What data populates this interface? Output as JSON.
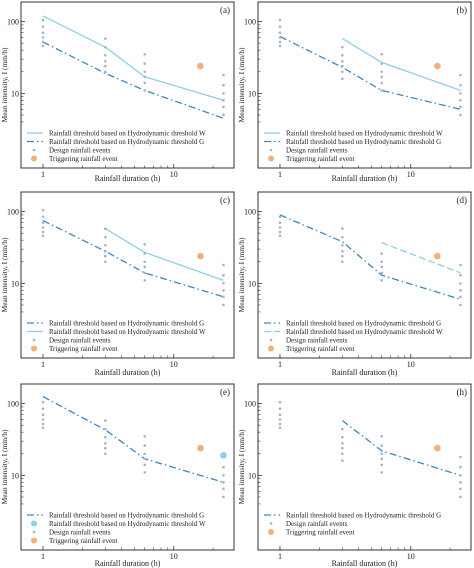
{
  "chart_data": [
    {
      "type": "line",
      "panel_label": "(a)",
      "xlabel": "Rainfall duration (h)",
      "ylabel": "Mean intensity, I (mm/h)",
      "xscale": "log",
      "yscale": "log",
      "xlim": [
        0.9,
        26
      ],
      "ylim": [
        3.4,
        145
      ],
      "x_tick_labels": [
        "1",
        "10"
      ],
      "y_tick_labels": [
        "10",
        "100"
      ],
      "grid": false,
      "legend_position": "bottom-left",
      "series": [
        {
          "name": "Rainfall threshold based on Hydrodynamic threshold W",
          "style": "solid",
          "color": "#8ecfe8",
          "x": [
            1,
            3,
            6,
            24
          ],
          "y": [
            120,
            44,
            17,
            8
          ]
        },
        {
          "name": "Rainfall threshold based on Hydrodynamic threshold G",
          "style": "dashdot",
          "color": "#3a86c4",
          "x": [
            1,
            3,
            6,
            24
          ],
          "y": [
            52,
            19,
            11,
            4.5
          ]
        },
        {
          "name": "Design rainfall events",
          "style": "dots",
          "color": "#aab3bb",
          "points": [
            [
              1,
              105
            ],
            [
              1,
              85
            ],
            [
              1,
              70
            ],
            [
              1,
              60
            ],
            [
              1,
              52
            ],
            [
              1,
              46
            ],
            [
              3,
              58
            ],
            [
              3,
              44
            ],
            [
              3,
              34
            ],
            [
              3,
              28
            ],
            [
              3,
              24
            ],
            [
              3,
              20
            ],
            [
              6,
              35
            ],
            [
              6,
              26
            ],
            [
              6,
              20
            ],
            [
              6,
              17
            ],
            [
              6,
              14
            ],
            [
              6,
              11
            ],
            [
              24,
              18
            ],
            [
              24,
              13
            ],
            [
              24,
              10
            ],
            [
              24,
              8
            ],
            [
              24,
              6.5
            ],
            [
              24,
              5
            ]
          ]
        },
        {
          "name": "Triggering rainfall event",
          "style": "marker",
          "color": "#f3b07a",
          "points": [
            [
              16,
              24
            ]
          ]
        }
      ]
    },
    {
      "type": "line",
      "panel_label": "(b)",
      "xlabel": "Rainfall duration (h)",
      "ylabel": "Mean intensity, I (mm/h)",
      "xscale": "log",
      "yscale": "log",
      "xlim": [
        0.9,
        26
      ],
      "ylim": [
        3.4,
        145
      ],
      "x_tick_labels": [
        "1",
        "10"
      ],
      "y_tick_labels": [
        "10",
        "100"
      ],
      "grid": false,
      "legend_position": "bottom-left",
      "series": [
        {
          "name": "Rainfall threshold based on Hydrodynamic threshold W",
          "style": "solid",
          "color": "#8ecfe8",
          "x": [
            3,
            6,
            24
          ],
          "y": [
            58,
            27,
            11
          ]
        },
        {
          "name": "Rainfall threshold based on Hydrodynamic threshold G",
          "style": "dashdot",
          "color": "#3a86c4",
          "x": [
            1,
            3,
            6,
            24
          ],
          "y": [
            62,
            23,
            11,
            6
          ]
        },
        {
          "name": "Design rainfall events",
          "style": "dots",
          "color": "#aab3bb",
          "points": [
            [
              1,
              105
            ],
            [
              1,
              85
            ],
            [
              1,
              70
            ],
            [
              1,
              60
            ],
            [
              1,
              52
            ],
            [
              1,
              46
            ],
            [
              3,
              44
            ],
            [
              3,
              34
            ],
            [
              3,
              28
            ],
            [
              3,
              24
            ],
            [
              3,
              20
            ],
            [
              3,
              16
            ],
            [
              6,
              35
            ],
            [
              6,
              26
            ],
            [
              6,
              20
            ],
            [
              6,
              17
            ],
            [
              6,
              14
            ],
            [
              6,
              11
            ],
            [
              24,
              18
            ],
            [
              24,
              13
            ],
            [
              24,
              10
            ],
            [
              24,
              8
            ],
            [
              24,
              6.5
            ],
            [
              24,
              5
            ]
          ]
        },
        {
          "name": "Triggering rainfall event",
          "style": "marker",
          "color": "#f3b07a",
          "points": [
            [
              16,
              24
            ]
          ]
        }
      ]
    },
    {
      "type": "line",
      "panel_label": "(c)",
      "xlabel": "Rainfall duration (h)",
      "ylabel": "Mean intensity, I (mm/h)",
      "xscale": "log",
      "yscale": "log",
      "xlim": [
        0.9,
        26
      ],
      "ylim": [
        3.4,
        145
      ],
      "x_tick_labels": [
        "1",
        "10"
      ],
      "y_tick_labels": [
        "10",
        "100"
      ],
      "grid": false,
      "legend_position": "bottom-left",
      "series": [
        {
          "name": "Rainfall threshold based on Hydrodynamic threshold G",
          "style": "dashdot",
          "color": "#3a86c4",
          "x": [
            1,
            3,
            6,
            24
          ],
          "y": [
            75,
            28,
            14,
            6.5
          ]
        },
        {
          "name": "Rainfall threshold based on Hydrodynamic threshold W",
          "style": "solid",
          "color": "#8ecfe8",
          "x": [
            3,
            6,
            24
          ],
          "y": [
            58,
            27,
            11
          ]
        },
        {
          "name": "Design rainfall events",
          "style": "dots",
          "color": "#aab3bb",
          "points": [
            [
              1,
              105
            ],
            [
              1,
              85
            ],
            [
              1,
              70
            ],
            [
              1,
              60
            ],
            [
              1,
              52
            ],
            [
              1,
              46
            ],
            [
              3,
              58
            ],
            [
              3,
              44
            ],
            [
              3,
              34
            ],
            [
              3,
              28
            ],
            [
              3,
              24
            ],
            [
              3,
              20
            ],
            [
              6,
              35
            ],
            [
              6,
              26
            ],
            [
              6,
              20
            ],
            [
              6,
              17
            ],
            [
              6,
              14
            ],
            [
              6,
              11
            ],
            [
              24,
              18
            ],
            [
              24,
              13
            ],
            [
              24,
              10
            ],
            [
              24,
              8
            ],
            [
              24,
              6.5
            ],
            [
              24,
              5
            ]
          ]
        },
        {
          "name": "Triggering rainfall event",
          "style": "marker",
          "color": "#f3b07a",
          "points": [
            [
              16,
              24
            ]
          ]
        }
      ]
    },
    {
      "type": "line",
      "panel_label": "(d)",
      "xlabel": "Rainfall duration (h)",
      "ylabel": "Mean intensity, I (mm/h)",
      "xscale": "log",
      "yscale": "log",
      "xlim": [
        0.9,
        26
      ],
      "ylim": [
        3.4,
        145
      ],
      "x_tick_labels": [
        "1",
        "10"
      ],
      "y_tick_labels": [
        "10",
        "100"
      ],
      "grid": false,
      "legend_position": "bottom-left",
      "series": [
        {
          "name": "Rainfall threshold based on Hydrodynamic threshold G",
          "style": "dashdot",
          "color": "#3a86c4",
          "x": [
            1,
            3,
            6,
            24
          ],
          "y": [
            90,
            38,
            13,
            6
          ]
        },
        {
          "name": "Rainfall threshold based on Hydrodynamic threshold W",
          "style": "dashed",
          "color": "#8ecfe8",
          "x": [
            6,
            24
          ],
          "y": [
            37,
            14
          ]
        },
        {
          "name": "Design rainfall events",
          "style": "dots",
          "color": "#aab3bb",
          "points": [
            [
              1,
              85
            ],
            [
              1,
              70
            ],
            [
              1,
              60
            ],
            [
              1,
              52
            ],
            [
              1,
              46
            ],
            [
              3,
              58
            ],
            [
              3,
              44
            ],
            [
              3,
              34
            ],
            [
              3,
              28
            ],
            [
              3,
              24
            ],
            [
              3,
              20
            ],
            [
              6,
              26
            ],
            [
              6,
              20
            ],
            [
              6,
              17
            ],
            [
              6,
              14
            ],
            [
              6,
              11
            ],
            [
              24,
              18
            ],
            [
              24,
              13
            ],
            [
              24,
              10
            ],
            [
              24,
              8
            ],
            [
              24,
              6.5
            ],
            [
              24,
              5
            ]
          ]
        },
        {
          "name": "Triggering rainfall event",
          "style": "marker",
          "color": "#f3b07a",
          "points": [
            [
              16,
              24
            ]
          ]
        }
      ]
    },
    {
      "type": "line",
      "panel_label": "(e)",
      "xlabel": "Rainfall duration (h)",
      "ylabel": "Mean intensity, I (mm/h)",
      "xscale": "log",
      "yscale": "log",
      "xlim": [
        0.9,
        26
      ],
      "ylim": [
        3.4,
        145
      ],
      "x_tick_labels": [
        "1",
        "10"
      ],
      "y_tick_labels": [
        "10",
        "100"
      ],
      "grid": false,
      "legend_position": "bottom-left",
      "series": [
        {
          "name": "Rainfall threshold based on Hydrodynamic threshold G",
          "style": "dashdot",
          "color": "#3a86c4",
          "x": [
            1,
            3,
            6,
            24
          ],
          "y": [
            125,
            43,
            17,
            8
          ]
        },
        {
          "name": "Rainfall threshold based on Hydrodynamic threshold W",
          "style": "marker",
          "color": "#8ecfe8",
          "points": [
            [
              24,
              19
            ]
          ]
        },
        {
          "name": "Design rainfall events",
          "style": "dots",
          "color": "#aab3bb",
          "points": [
            [
              1,
              105
            ],
            [
              1,
              85
            ],
            [
              1,
              70
            ],
            [
              1,
              60
            ],
            [
              1,
              52
            ],
            [
              1,
              46
            ],
            [
              3,
              58
            ],
            [
              3,
              44
            ],
            [
              3,
              34
            ],
            [
              3,
              28
            ],
            [
              3,
              24
            ],
            [
              3,
              20
            ],
            [
              6,
              35
            ],
            [
              6,
              26
            ],
            [
              6,
              20
            ],
            [
              6,
              17
            ],
            [
              6,
              14
            ],
            [
              6,
              11
            ],
            [
              24,
              13
            ],
            [
              24,
              10
            ],
            [
              24,
              8
            ],
            [
              24,
              6.5
            ],
            [
              24,
              5
            ]
          ]
        },
        {
          "name": "Triggering rainfall event",
          "style": "marker",
          "color": "#f3b07a",
          "points": [
            [
              16,
              24
            ]
          ]
        }
      ]
    },
    {
      "type": "line",
      "panel_label": "(h)",
      "xlabel": "Rainfall duration (h)",
      "ylabel": "Mean intensity, I (mm/h)",
      "xscale": "log",
      "yscale": "log",
      "xlim": [
        0.9,
        26
      ],
      "ylim": [
        3.4,
        145
      ],
      "x_tick_labels": [
        "1",
        "10"
      ],
      "y_tick_labels": [
        "10",
        "100"
      ],
      "grid": false,
      "legend_position": "bottom-left",
      "series": [
        {
          "name": "Rainfall threshold based on Hydrodynamic threshold G",
          "style": "dashdot",
          "color": "#3a86c4",
          "x": [
            3,
            6,
            24
          ],
          "y": [
            58,
            22,
            10
          ]
        },
        {
          "name": "Design rainfall events",
          "style": "dots",
          "color": "#aab3bb",
          "points": [
            [
              1,
              105
            ],
            [
              1,
              85
            ],
            [
              1,
              70
            ],
            [
              1,
              60
            ],
            [
              1,
              52
            ],
            [
              1,
              46
            ],
            [
              3,
              44
            ],
            [
              3,
              34
            ],
            [
              3,
              28
            ],
            [
              3,
              24
            ],
            [
              3,
              20
            ],
            [
              3,
              16
            ],
            [
              6,
              35
            ],
            [
              6,
              26
            ],
            [
              6,
              20
            ],
            [
              6,
              17
            ],
            [
              6,
              14
            ],
            [
              6,
              11
            ],
            [
              24,
              18
            ],
            [
              24,
              13
            ],
            [
              24,
              10
            ],
            [
              24,
              8
            ],
            [
              24,
              6.5
            ],
            [
              24,
              5
            ]
          ]
        },
        {
          "name": "Triggering rainfall event",
          "style": "marker",
          "color": "#f3b07a",
          "points": [
            [
              16,
              24
            ]
          ]
        }
      ]
    }
  ]
}
